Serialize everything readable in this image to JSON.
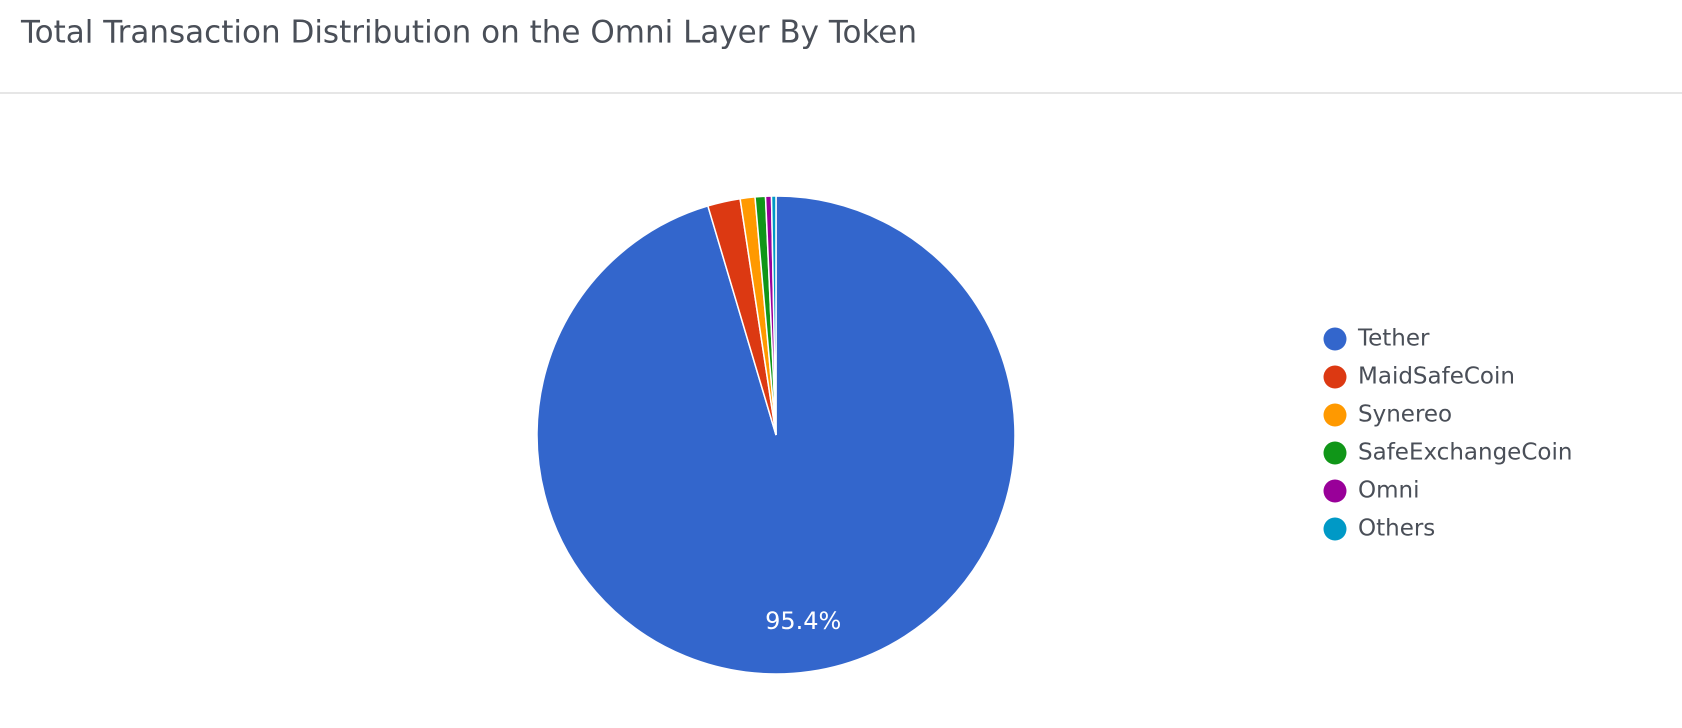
{
  "chart_data": {
    "type": "pie",
    "title": "Total Transaction Distribution on the Omni Layer By Token",
    "categories": [
      "Tether",
      "MaidSafeCoin",
      "Synereo",
      "SafeExchangeCoin",
      "Omni",
      "Others"
    ],
    "values": [
      95.4,
      2.2,
      1.0,
      0.7,
      0.4,
      0.3
    ],
    "value_labels": [
      "95.4%",
      null,
      null,
      null,
      null,
      null
    ],
    "colors": [
      "#3366cc",
      "#dc3912",
      "#ff9900",
      "#109618",
      "#990099",
      "#0099c6"
    ],
    "legend": "right"
  }
}
